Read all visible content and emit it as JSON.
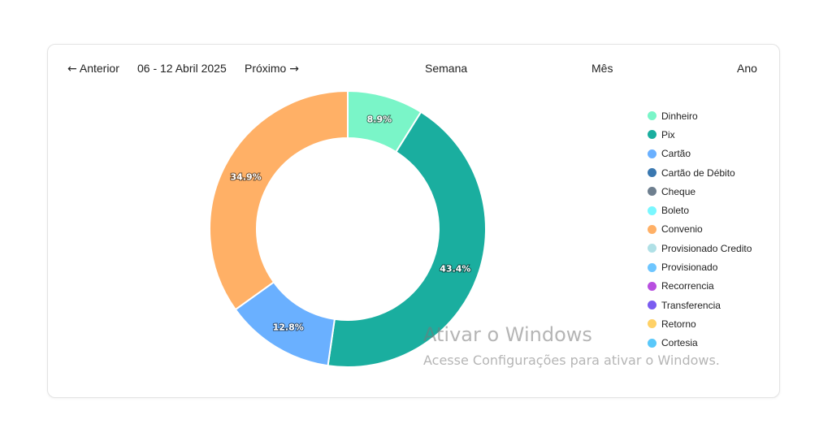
{
  "toolbar": {
    "prev_label": "Anterior",
    "date_range": "06 - 12 Abril 2025",
    "next_label": "Próximo",
    "week_label": "Semana",
    "month_label": "Mês",
    "year_label": "Ano"
  },
  "chart_data": {
    "type": "pie",
    "donut": true,
    "slices": [
      {
        "label": "Dinheiro",
        "value": 8.9,
        "display": "8.9%",
        "color": "#7af5c8"
      },
      {
        "label": "Pix",
        "value": 43.4,
        "display": "43.4%",
        "color": "#1aae9f"
      },
      {
        "label": "Cartão",
        "value": 12.8,
        "display": "12.8%",
        "color": "#6ab0ff"
      },
      {
        "label": "Convenio",
        "value": 34.9,
        "display": "34.9%",
        "color": "#ffb066"
      }
    ],
    "legend": {
      "position": "right",
      "entries": [
        {
          "label": "Dinheiro",
          "color": "#7af5c8"
        },
        {
          "label": "Pix",
          "color": "#1aae9f"
        },
        {
          "label": "Cartão",
          "color": "#6ab0ff"
        },
        {
          "label": "Cartão de Débito",
          "color": "#3a78b0"
        },
        {
          "label": "Cheque",
          "color": "#6e7f8f"
        },
        {
          "label": "Boleto",
          "color": "#7af7ff"
        },
        {
          "label": "Convenio",
          "color": "#ffb066"
        },
        {
          "label": "Provisionado Credito",
          "color": "#b0e0e6"
        },
        {
          "label": "Provisionado",
          "color": "#6ec6ff"
        },
        {
          "label": "Recorrencia",
          "color": "#b84fe0"
        },
        {
          "label": "Transferencia",
          "color": "#7a5cf0"
        },
        {
          "label": "Retorno",
          "color": "#ffd166"
        },
        {
          "label": "Cortesia",
          "color": "#5ac8fa"
        }
      ]
    }
  },
  "watermark": {
    "line1": "Ativar o Windows",
    "line2": "Acesse Configurações para ativar o Windows."
  }
}
